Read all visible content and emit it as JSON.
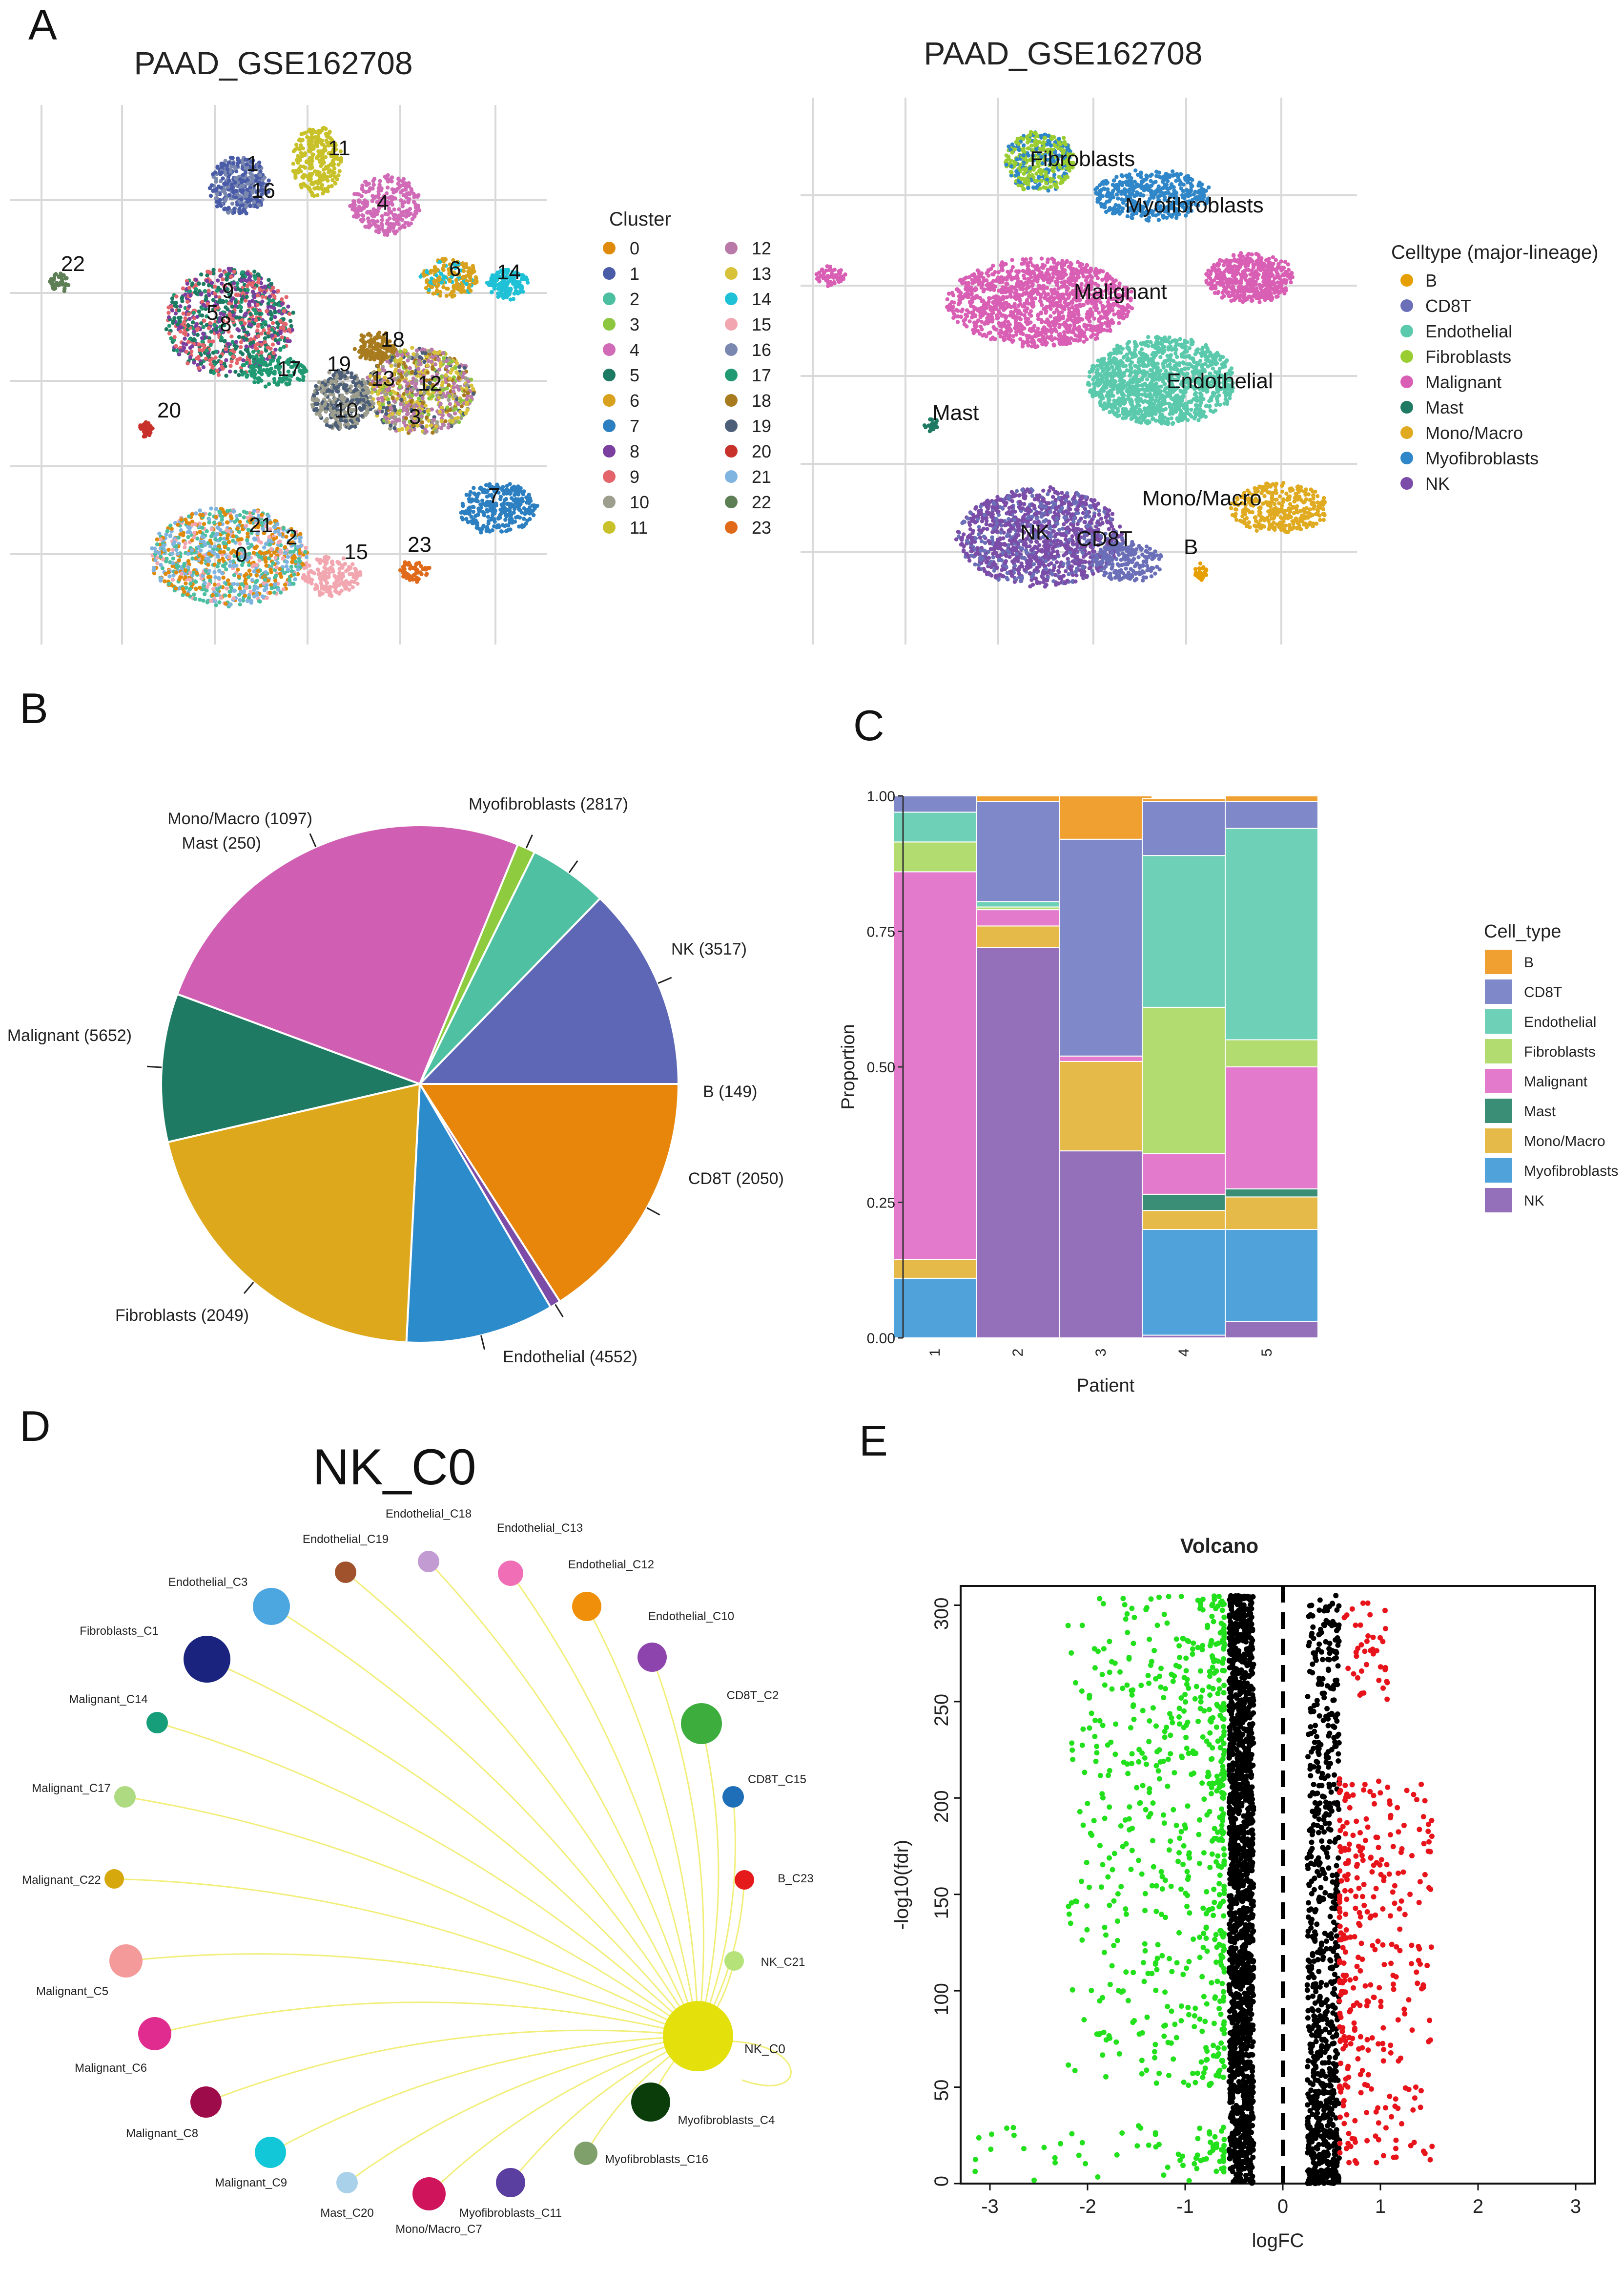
{
  "panel_labels": {
    "a": "A",
    "b": "B",
    "c": "C",
    "d": "D",
    "e": "E"
  },
  "colors": {
    "B": "#E69F00",
    "CD8T": "#6A6FB8",
    "Endothelial": "#5BC9AC",
    "Fibroblasts": "#9ACD32",
    "Malignant": "#D95FB5",
    "Mast": "#1F7A64",
    "Mono/Macro": "#E0AB21",
    "Myofibroblasts": "#2F86C8",
    "NK": "#7B4DA8"
  },
  "panel_a": {
    "left_title": "PAAD_GSE162708",
    "right_title": "PAAD_GSE162708",
    "cluster_legend_title": "Cluster",
    "clusters": [
      {
        "id": "0",
        "color": "#E08A0B"
      },
      {
        "id": "1",
        "color": "#4A5CA8"
      },
      {
        "id": "2",
        "color": "#4BBFA0"
      },
      {
        "id": "3",
        "color": "#8DC63F"
      },
      {
        "id": "4",
        "color": "#D16BB8"
      },
      {
        "id": "5",
        "color": "#1D7A63"
      },
      {
        "id": "6",
        "color": "#D9A21E"
      },
      {
        "id": "7",
        "color": "#2C7FC0"
      },
      {
        "id": "8",
        "color": "#7B3FA0"
      },
      {
        "id": "9",
        "color": "#E4646B"
      },
      {
        "id": "10",
        "color": "#9E9E8E"
      },
      {
        "id": "11",
        "color": "#C9C12A"
      },
      {
        "id": "12",
        "color": "#B97AA9"
      },
      {
        "id": "13",
        "color": "#D8C23A"
      },
      {
        "id": "14",
        "color": "#1FC1D6"
      },
      {
        "id": "15",
        "color": "#F2A7B0"
      },
      {
        "id": "16",
        "color": "#7A88B0"
      },
      {
        "id": "17",
        "color": "#219A73"
      },
      {
        "id": "18",
        "color": "#A77B1E"
      },
      {
        "id": "19",
        "color": "#4C5E78"
      },
      {
        "id": "20",
        "color": "#C8302A"
      },
      {
        "id": "21",
        "color": "#7FB4E0"
      },
      {
        "id": "22",
        "color": "#5E7E55"
      },
      {
        "id": "23",
        "color": "#E06A1A"
      }
    ],
    "celltype_legend_title": "Celltype (major-lineage)",
    "celltypes": [
      "B",
      "CD8T",
      "Endothelial",
      "Fibroblasts",
      "Malignant",
      "Mast",
      "Mono/Macro",
      "Myofibroblasts",
      "NK"
    ],
    "cluster_labels": [
      "1",
      "11",
      "16",
      "4",
      "22",
      "6",
      "14",
      "9",
      "5",
      "8",
      "18",
      "19",
      "13",
      "12",
      "17",
      "10",
      "3",
      "20",
      "7",
      "21",
      "2",
      "0",
      "15",
      "23"
    ],
    "celltype_labels": [
      "Fibroblasts",
      "Myofibroblasts",
      "Malignant",
      "Endothelial",
      "Mast",
      "Mono/Macro",
      "NK",
      "CD8T",
      "B"
    ]
  },
  "panel_b": {
    "slices": [
      {
        "label": "NK (3517)",
        "name": "NK",
        "value": 3517,
        "color": "#E8850B"
      },
      {
        "label": "B (149)",
        "name": "B",
        "value": 149,
        "color": "#7B4DA8"
      },
      {
        "label": "CD8T (2050)",
        "name": "CD8T",
        "value": 2050,
        "color": "#2B8BCB"
      },
      {
        "label": "Endothelial (4552)",
        "name": "Endothelial",
        "value": 4552,
        "color": "#DEA81C"
      },
      {
        "label": "Fibroblasts (2049)",
        "name": "Fibroblasts",
        "value": 2049,
        "color": "#1F7A64"
      },
      {
        "label": "Malignant (5652)",
        "name": "Malignant",
        "value": 5652,
        "color": "#D05FB3"
      },
      {
        "label": "Mast (250)",
        "name": "Mast",
        "value": 250,
        "color": "#8FCB3E"
      },
      {
        "label": "Mono/Macro (1097)",
        "name": "Mono/Macro",
        "value": 1097,
        "color": "#4FC1A2"
      },
      {
        "label": "Myofibroblasts (2817)",
        "name": "Myofibroblasts",
        "value": 2817,
        "color": "#5E67B6"
      }
    ]
  },
  "chart_data": [
    {
      "type": "bar",
      "title": "",
      "xlabel": "Patient",
      "ylabel": "Proportion",
      "ylim": [
        0,
        1
      ],
      "yticks": [
        "0.00",
        "0.25",
        "0.50",
        "0.75",
        "1.00"
      ],
      "categories": [
        "1",
        "2",
        "3",
        "4",
        "5"
      ],
      "legend_title": "Cell_type",
      "series": [
        {
          "name": "NK",
          "values": [
            0.0,
            0.72,
            0.345,
            0.005,
            0.03
          ]
        },
        {
          "name": "Myofibroblasts",
          "values": [
            0.11,
            0.0,
            0.0,
            0.195,
            0.17
          ]
        },
        {
          "name": "Mono/Macro",
          "values": [
            0.035,
            0.04,
            0.165,
            0.035,
            0.06
          ]
        },
        {
          "name": "Mast",
          "values": [
            0.0,
            0.0,
            0.0,
            0.03,
            0.015
          ]
        },
        {
          "name": "Malignant",
          "values": [
            0.715,
            0.03,
            0.01,
            0.075,
            0.225
          ]
        },
        {
          "name": "Fibroblasts",
          "values": [
            0.055,
            0.005,
            0.0,
            0.27,
            0.05
          ]
        },
        {
          "name": "Endothelial",
          "values": [
            0.055,
            0.01,
            0.0,
            0.28,
            0.39
          ]
        },
        {
          "name": "CD8T",
          "values": [
            0.03,
            0.185,
            0.4,
            0.1,
            0.05
          ]
        },
        {
          "name": "B",
          "values": [
            0.0,
            0.01,
            0.08,
            0.005,
            0.01
          ]
        }
      ]
    },
    {
      "type": "scatter",
      "title": "Volcano",
      "xlabel": "logFC",
      "ylabel": "-log10(fdr)",
      "xlim": [
        -3.3,
        3.2
      ],
      "ylim": [
        0,
        310
      ],
      "xticks": [
        "-3",
        "-2",
        "-1",
        "0",
        "1",
        "2",
        "3"
      ],
      "yticks": [
        "0",
        "50",
        "100",
        "150",
        "200",
        "250",
        "300"
      ],
      "series": [
        {
          "name": "down",
          "color": "#22E01C",
          "x_range": [
            -3.2,
            -0.55
          ],
          "y_range": [
            0,
            305
          ]
        },
        {
          "name": "ns",
          "color": "#000000",
          "x_range": [
            -0.6,
            0.6
          ],
          "y_range": [
            0,
            305
          ]
        },
        {
          "name": "up",
          "color": "#E8141B",
          "x_range": [
            0.55,
            1.5
          ],
          "y_range": [
            0,
            210
          ]
        }
      ],
      "threshold_x": 0
    }
  ],
  "panel_d": {
    "title": "NK_C0",
    "center": {
      "label": "NK_C0",
      "color": "#E3E00C"
    },
    "nodes": [
      {
        "label": "Endothelial_C19",
        "color": "#A0522D",
        "r": 22
      },
      {
        "label": "Endothelial_C18",
        "color": "#C39BD3",
        "r": 22
      },
      {
        "label": "Endothelial_C13",
        "color": "#F06EB6",
        "r": 26
      },
      {
        "label": "Endothelial_C12",
        "color": "#F0900A",
        "r": 30
      },
      {
        "label": "Endothelial_C10",
        "color": "#8E44AD",
        "r": 30
      },
      {
        "label": "Endothelial_C3",
        "color": "#4CA6E0",
        "r": 38
      },
      {
        "label": "Fibroblasts_C1",
        "color": "#1A237E",
        "r": 48
      },
      {
        "label": "CD8T_C2",
        "color": "#3DAE3D",
        "r": 42
      },
      {
        "label": "CD8T_C15",
        "color": "#1E6FB8",
        "r": 22
      },
      {
        "label": "Malignant_C14",
        "color": "#169E7A",
        "r": 22
      },
      {
        "label": "Malignant_C17",
        "color": "#AEDB82",
        "r": 22
      },
      {
        "label": "B_C23",
        "color": "#E51A1A",
        "r": 20
      },
      {
        "label": "Malignant_C22",
        "color": "#D6A80B",
        "r": 20
      },
      {
        "label": "NK_C21",
        "color": "#B5E37A",
        "r": 20
      },
      {
        "label": "Malignant_C5",
        "color": "#F59A9A",
        "r": 34
      },
      {
        "label": "Malignant_C6",
        "color": "#E02C8E",
        "r": 34
      },
      {
        "label": "Myofibroblasts_C4",
        "color": "#0B3D0B",
        "r": 40
      },
      {
        "label": "Malignant_C8",
        "color": "#9E0B4A",
        "r": 32
      },
      {
        "label": "Myofibroblasts_C16",
        "color": "#7F9F6B",
        "r": 24
      },
      {
        "label": "Malignant_C9",
        "color": "#12C8D8",
        "r": 32
      },
      {
        "label": "Mast_C20",
        "color": "#A9D1EA",
        "r": 22
      },
      {
        "label": "Mono/Macro_C7",
        "color": "#D0145C",
        "r": 34
      },
      {
        "label": "Myofibroblasts_C11",
        "color": "#5B3FA0",
        "r": 30
      }
    ]
  }
}
